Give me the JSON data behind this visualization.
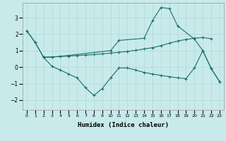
{
  "xlabel": "Humidex (Indice chaleur)",
  "background_color": "#c8eaea",
  "grid_color": "#b0d8d8",
  "line_color": "#1a6e6e",
  "xlim": [
    -0.5,
    23.5
  ],
  "ylim": [
    -2.6,
    3.9
  ],
  "yticks": [
    -2,
    -1,
    0,
    1,
    2,
    3
  ],
  "xticks": [
    0,
    1,
    2,
    3,
    4,
    5,
    6,
    7,
    8,
    9,
    10,
    11,
    12,
    13,
    14,
    15,
    16,
    17,
    18,
    19,
    20,
    21,
    22,
    23
  ],
  "line1_x": [
    0,
    1,
    2,
    3,
    4,
    5,
    6,
    7,
    8,
    9,
    10,
    11,
    12,
    13,
    14,
    15,
    16,
    17,
    18,
    19,
    20,
    21,
    22
  ],
  "line1_y": [
    2.2,
    1.5,
    0.6,
    0.62,
    0.64,
    0.67,
    0.7,
    0.73,
    0.76,
    0.8,
    0.85,
    0.9,
    0.95,
    1.02,
    1.1,
    1.18,
    1.3,
    1.45,
    1.58,
    1.68,
    1.75,
    1.8,
    1.72
  ],
  "line2_x": [
    0,
    1,
    2,
    3,
    4,
    5,
    6,
    7,
    8,
    9,
    10,
    11,
    12,
    13,
    14,
    15,
    16,
    17,
    18,
    19,
    20,
    21,
    22,
    23
  ],
  "line2_y": [
    2.2,
    1.5,
    0.6,
    0.05,
    -0.18,
    -0.42,
    -0.65,
    -1.25,
    -1.72,
    -1.3,
    -0.65,
    -0.05,
    -0.05,
    -0.18,
    -0.32,
    -0.42,
    -0.5,
    -0.58,
    -0.65,
    -0.7,
    -0.05,
    1.0,
    -0.08,
    -0.88
  ],
  "line3_x": [
    2,
    3,
    10,
    11,
    14,
    15,
    16,
    17,
    18,
    20,
    21,
    22,
    23
  ],
  "line3_y": [
    0.6,
    0.6,
    1.0,
    1.62,
    1.75,
    2.82,
    3.62,
    3.55,
    2.5,
    1.7,
    1.0,
    -0.08,
    -0.88
  ]
}
